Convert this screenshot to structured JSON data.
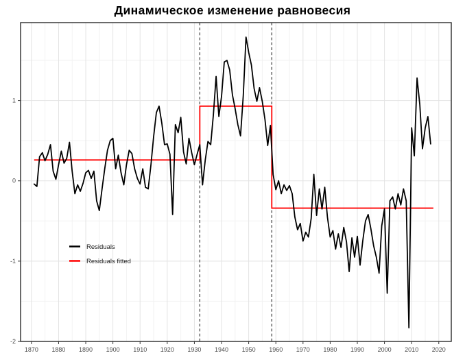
{
  "title": "Динамическое изменение равновесия",
  "legend": {
    "items": [
      {
        "label": "Residuals",
        "color": "#000000"
      },
      {
        "label": "Residuals fitted",
        "color": "#ff0000"
      }
    ]
  },
  "colors": {
    "residuals": "#000000",
    "fitted": "#ff0000",
    "breakline": "#4a4a4a",
    "grid_major": "#e3e3e3",
    "grid_minor": "#f2f2f2",
    "panel_border": "#2b2b2b",
    "tick": "#333333",
    "tick_label": "#4d4d4d",
    "background": "#ffffff"
  },
  "chart_data": {
    "type": "line",
    "title": "Динамическое изменение равновесия",
    "xlabel": "",
    "ylabel": "",
    "xlim": [
      1866,
      2024.6
    ],
    "ylim": [
      -2,
      1.97
    ],
    "xticks": [
      1870,
      1880,
      1890,
      1900,
      1910,
      1920,
      1930,
      1940,
      1950,
      1960,
      1970,
      1980,
      1990,
      2000,
      2010,
      2020
    ],
    "yticks": [
      -2,
      -1,
      0,
      1
    ],
    "x_minor": [
      1875,
      1885,
      1895,
      1905,
      1915,
      1925,
      1935,
      1945,
      1955,
      1965,
      1975,
      1985,
      1995,
      2005,
      2015
    ],
    "y_minor": [
      -1.5,
      -0.5,
      0.5,
      1.5
    ],
    "grid": true,
    "legend_position": "inside-bottom-left",
    "breakpoints": [
      1932,
      1958.5
    ],
    "series": [
      {
        "name": "Residuals",
        "type": "line",
        "color": "#000000",
        "x_start": 1871,
        "x_step": 1,
        "values": [
          -0.04,
          -0.07,
          0.3,
          0.35,
          0.25,
          0.33,
          0.45,
          0.12,
          0.02,
          0.2,
          0.37,
          0.22,
          0.28,
          0.48,
          0.12,
          -0.16,
          -0.05,
          -0.13,
          -0.03,
          0.1,
          0.13,
          0.03,
          0.12,
          -0.25,
          -0.37,
          -0.1,
          0.15,
          0.38,
          0.5,
          0.53,
          0.15,
          0.32,
          0.1,
          -0.05,
          0.2,
          0.38,
          0.34,
          0.15,
          0.03,
          -0.04,
          0.15,
          -0.08,
          -0.1,
          0.2,
          0.55,
          0.85,
          0.93,
          0.72,
          0.45,
          0.46,
          0.33,
          -0.42,
          0.7,
          0.6,
          0.79,
          0.36,
          0.21,
          0.53,
          0.35,
          0.2,
          0.33,
          0.45,
          -0.05,
          0.26,
          0.49,
          0.45,
          0.82,
          1.3,
          0.8,
          1.05,
          1.48,
          1.5,
          1.38,
          1.07,
          0.9,
          0.7,
          0.56,
          1.06,
          1.79,
          1.6,
          1.44,
          1.15,
          0.99,
          1.16,
          0.99,
          0.76,
          0.44,
          0.69,
          0.08,
          -0.11,
          0.0,
          -0.16,
          -0.05,
          -0.12,
          -0.06,
          -0.16,
          -0.45,
          -0.61,
          -0.53,
          -0.75,
          -0.64,
          -0.7,
          -0.47,
          0.08,
          -0.43,
          -0.1,
          -0.35,
          -0.08,
          -0.45,
          -0.7,
          -0.62,
          -0.85,
          -0.66,
          -0.83,
          -0.58,
          -0.76,
          -1.13,
          -0.71,
          -0.95,
          -0.69,
          -1.05,
          -0.75,
          -0.5,
          -0.42,
          -0.6,
          -0.81,
          -0.95,
          -1.15,
          -0.56,
          -0.35,
          -1.4,
          -0.25,
          -0.2,
          -0.35,
          -0.16,
          -0.3,
          -0.1,
          -0.25,
          -1.83,
          0.66,
          0.31,
          1.28,
          0.95,
          0.4,
          0.66,
          0.8,
          0.46
        ]
      },
      {
        "name": "Residuals fitted",
        "type": "step",
        "color": "#ff0000",
        "segments": [
          {
            "x_start": 1871,
            "x_end": 1932,
            "value": 0.26
          },
          {
            "x_start": 1932,
            "x_end": 1958.5,
            "value": 0.93
          },
          {
            "x_start": 1958.5,
            "x_end": 2018,
            "value": -0.34
          }
        ]
      }
    ]
  }
}
